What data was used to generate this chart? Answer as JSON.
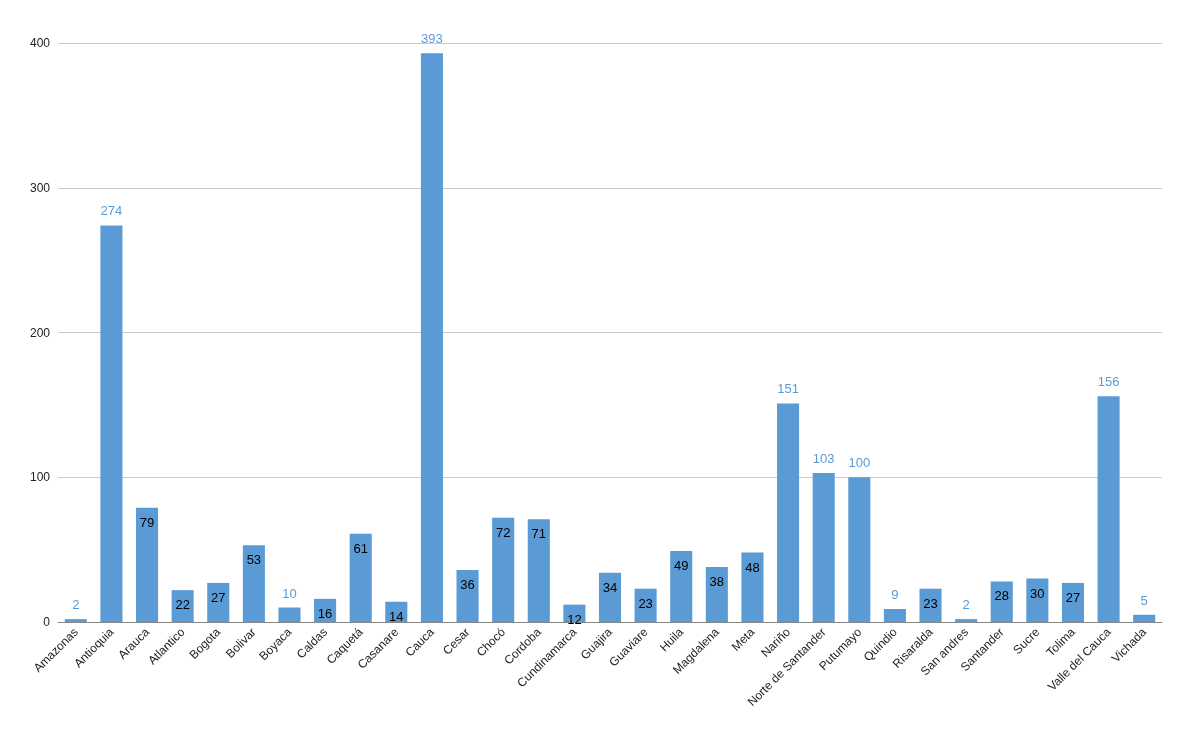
{
  "chart_data": {
    "type": "bar",
    "categories": [
      "Amazonas",
      "Antioquia",
      "Arauca",
      "Atlantico",
      "Bogota",
      "Bolivar",
      "Boyaca",
      "Caldas",
      "Caquetá",
      "Casanare",
      "Cauca",
      "Cesar",
      "Chocó",
      "Cordoba",
      "Cundinamarca",
      "Guajira",
      "Guaviare",
      "Huila",
      "Magdalena",
      "Meta",
      "Nariño",
      "Norte de Santander",
      "Putumayo",
      "Quindio",
      "Risaralda",
      "San andres",
      "Santander",
      "Sucre",
      "Tolima",
      "Valle del Cauca",
      "Vichada"
    ],
    "values": [
      2,
      274,
      79,
      22,
      27,
      53,
      10,
      16,
      61,
      14,
      393,
      36,
      72,
      71,
      12,
      34,
      23,
      49,
      38,
      48,
      151,
      103,
      100,
      9,
      23,
      2,
      28,
      30,
      27,
      156,
      5
    ],
    "color": "#5b9bd5",
    "ylim": [
      0,
      400
    ],
    "yticks": [
      0,
      100,
      200,
      300,
      400
    ],
    "grid": "y",
    "data_labels": true
  }
}
